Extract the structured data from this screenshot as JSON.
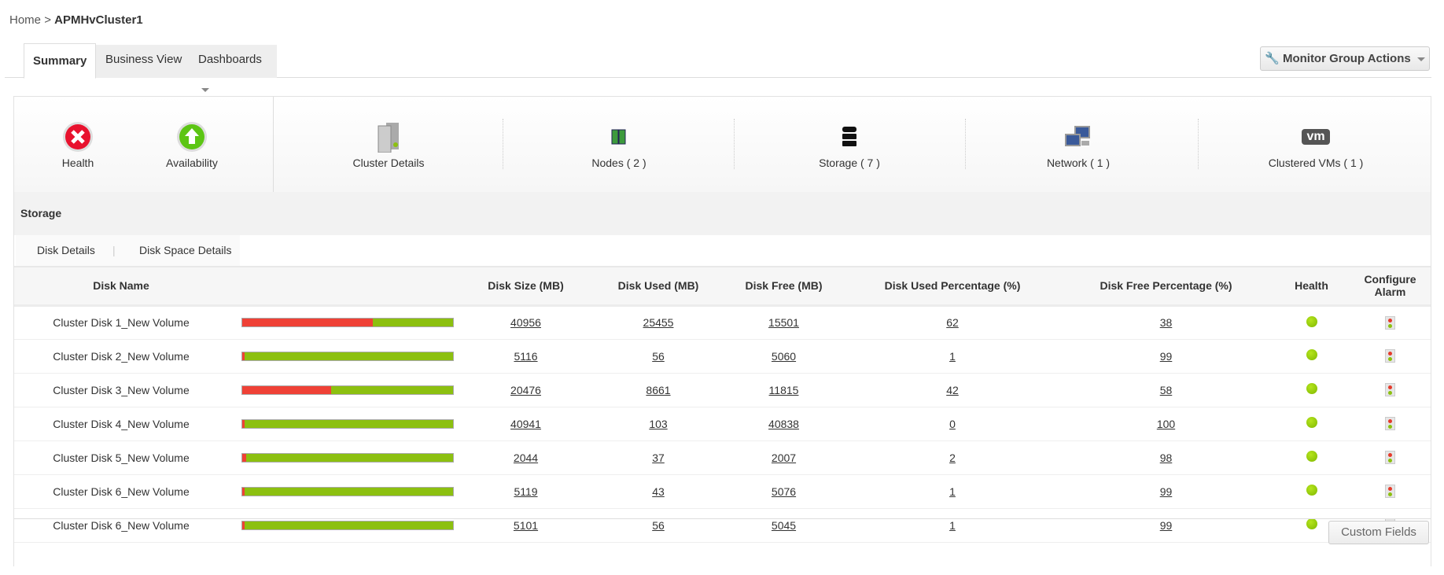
{
  "breadcrumb": {
    "home": "Home",
    "separator": ">",
    "current": "APMHvCluster1"
  },
  "tabs": [
    {
      "label": "Summary"
    },
    {
      "label": "Business View"
    },
    {
      "label": "Dashboards"
    }
  ],
  "actions": {
    "monitor_group": "Monitor Group Actions"
  },
  "status": {
    "health": "Health",
    "availability": "Availability"
  },
  "nav": [
    {
      "label": "Cluster Details",
      "icon": "server-cluster-icon"
    },
    {
      "label": "Nodes ( 2 )",
      "icon": "nodes-icon"
    },
    {
      "label": "Storage ( 7 )",
      "icon": "storage-icon"
    },
    {
      "label": "Network ( 1 )",
      "icon": "network-icon"
    },
    {
      "label": "Clustered VMs ( 1 )",
      "icon": "vm-icon",
      "badge": "vm"
    }
  ],
  "section": {
    "title": "Storage",
    "subtabs": [
      "Disk Details",
      "Disk Space Details"
    ]
  },
  "table": {
    "headers": [
      "Disk Name",
      "Disk Size (MB)",
      "Disk Used (MB)",
      "Disk Free (MB)",
      "Disk Used Percentage (%)",
      "Disk Free Percentage (%)",
      "Health",
      "Configure Alarm"
    ],
    "rows": [
      {
        "name": "Cluster Disk 1_New Volume",
        "size": "40956",
        "used": "25455",
        "free": "15501",
        "used_pct": "62",
        "free_pct": "38",
        "health": "green"
      },
      {
        "name": "Cluster Disk 2_New Volume",
        "size": "5116",
        "used": "56",
        "free": "5060",
        "used_pct": "1",
        "free_pct": "99",
        "health": "green"
      },
      {
        "name": "Cluster Disk 3_New Volume",
        "size": "20476",
        "used": "8661",
        "free": "11815",
        "used_pct": "42",
        "free_pct": "58",
        "health": "green"
      },
      {
        "name": "Cluster Disk 4_New Volume",
        "size": "40941",
        "used": "103",
        "free": "40838",
        "used_pct": "0",
        "free_pct": "100",
        "health": "green"
      },
      {
        "name": "Cluster Disk 5_New Volume",
        "size": "2044",
        "used": "37",
        "free": "2007",
        "used_pct": "2",
        "free_pct": "98",
        "health": "green"
      },
      {
        "name": "Cluster Disk 6_New Volume",
        "size": "5119",
        "used": "43",
        "free": "5076",
        "used_pct": "1",
        "free_pct": "99",
        "health": "green"
      },
      {
        "name": "Cluster Disk 6_New Volume",
        "size": "5101",
        "used": "56",
        "free": "5045",
        "used_pct": "1",
        "free_pct": "99",
        "health": "green"
      }
    ]
  },
  "footer": {
    "custom_fields": "Custom Fields"
  },
  "colors": {
    "used": "#ef4136",
    "free": "#8cc010"
  }
}
